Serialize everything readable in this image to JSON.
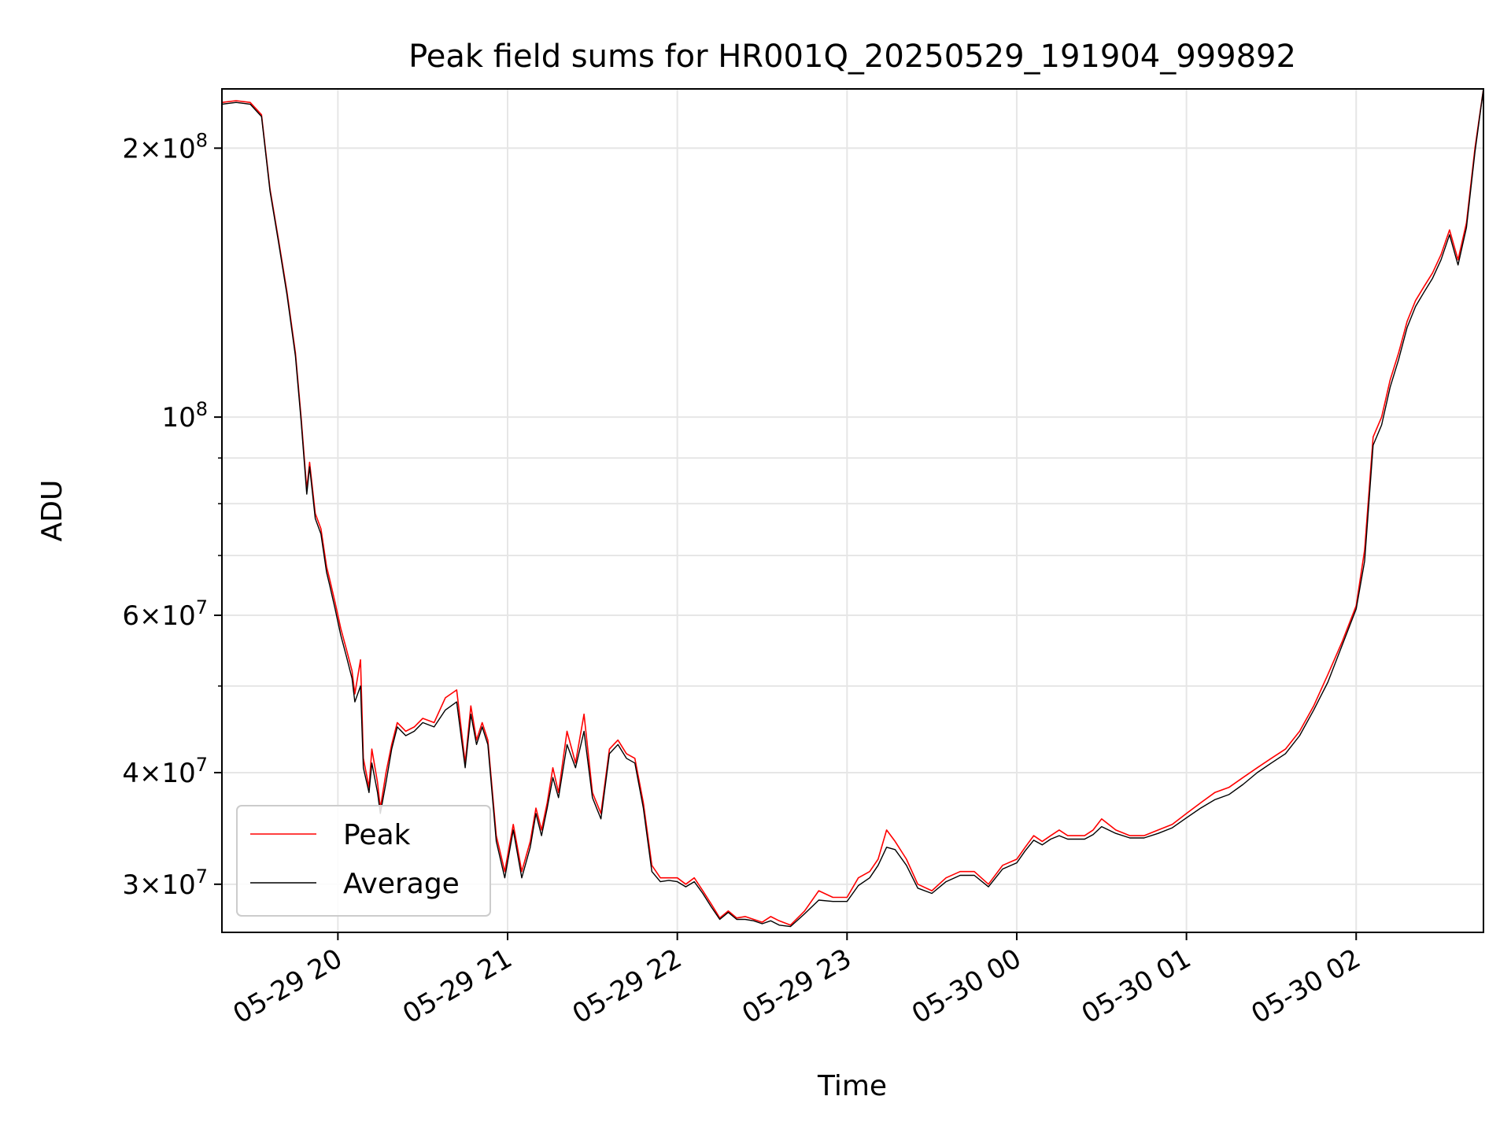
{
  "chart_data": {
    "type": "line",
    "title": "Peak field sums for HR001Q_20250529_191904_999892",
    "xlabel": "Time",
    "ylabel": "ADU",
    "y_scale": "log",
    "ylim": [
      26500000,
      233000000
    ],
    "xlim": [
      "2025-05-29 19:19",
      "2025-05-30 02:45"
    ],
    "grid": true,
    "legend_position": "lower-left",
    "x_ticks": [
      {
        "label": "05-29 20",
        "time": "2025-05-29 20:00"
      },
      {
        "label": "05-29 21",
        "time": "2025-05-29 21:00"
      },
      {
        "label": "05-29 22",
        "time": "2025-05-29 22:00"
      },
      {
        "label": "05-29 23",
        "time": "2025-05-29 23:00"
      },
      {
        "label": "05-30 00",
        "time": "2025-05-30 00:00"
      },
      {
        "label": "05-30 01",
        "time": "2025-05-30 01:00"
      },
      {
        "label": "05-30 02",
        "time": "2025-05-30 02:00"
      }
    ],
    "y_major_ticks": [
      {
        "value": 30000000,
        "mantissa": "3",
        "exponent": "7"
      },
      {
        "value": 40000000,
        "mantissa": "4",
        "exponent": "7"
      },
      {
        "value": 60000000,
        "mantissa": "6",
        "exponent": "7"
      },
      {
        "value": 100000000,
        "mantissa": "",
        "exponent": "8"
      },
      {
        "value": 200000000,
        "mantissa": "2",
        "exponent": "8"
      }
    ],
    "y_minor_grid": [
      50000000,
      70000000,
      80000000,
      90000000
    ],
    "series": [
      {
        "name": "Peak",
        "color": "#ff0000",
        "x": [
          "2025-05-29 19:19",
          "2025-05-29 19:24",
          "2025-05-29 19:29",
          "2025-05-29 19:33",
          "2025-05-29 19:36",
          "2025-05-29 19:39",
          "2025-05-29 19:42",
          "2025-05-29 19:45",
          "2025-05-29 19:47",
          "2025-05-29 19:49",
          "2025-05-29 19:50",
          "2025-05-29 19:52",
          "2025-05-29 19:54",
          "2025-05-29 19:56",
          "2025-05-29 19:57",
          "2025-05-29 19:59",
          "2025-05-29 20:01",
          "2025-05-29 20:03",
          "2025-05-29 20:05",
          "2025-05-29 20:06",
          "2025-05-29 20:08",
          "2025-05-29 20:09",
          "2025-05-29 20:11",
          "2025-05-29 20:12",
          "2025-05-29 20:14",
          "2025-05-29 20:15",
          "2025-05-29 20:17",
          "2025-05-29 20:19",
          "2025-05-29 20:21",
          "2025-05-29 20:24",
          "2025-05-29 20:27",
          "2025-05-29 20:30",
          "2025-05-29 20:34",
          "2025-05-29 20:38",
          "2025-05-29 20:42",
          "2025-05-29 20:45",
          "2025-05-29 20:47",
          "2025-05-29 20:49",
          "2025-05-29 20:51",
          "2025-05-29 20:53",
          "2025-05-29 20:56",
          "2025-05-29 20:59",
          "2025-05-29 21:02",
          "2025-05-29 21:05",
          "2025-05-29 21:08",
          "2025-05-29 21:10",
          "2025-05-29 21:12",
          "2025-05-29 21:14",
          "2025-05-29 21:16",
          "2025-05-29 21:18",
          "2025-05-29 21:21",
          "2025-05-29 21:24",
          "2025-05-29 21:27",
          "2025-05-29 21:30",
          "2025-05-29 21:33",
          "2025-05-29 21:36",
          "2025-05-29 21:39",
          "2025-05-29 21:42",
          "2025-05-29 21:45",
          "2025-05-29 21:48",
          "2025-05-29 21:51",
          "2025-05-29 21:54",
          "2025-05-29 21:57",
          "2025-05-29 22:00",
          "2025-05-29 22:03",
          "2025-05-29 22:06",
          "2025-05-29 22:09",
          "2025-05-29 22:12",
          "2025-05-29 22:15",
          "2025-05-29 22:18",
          "2025-05-29 22:21",
          "2025-05-29 22:24",
          "2025-05-29 22:27",
          "2025-05-29 22:30",
          "2025-05-29 22:33",
          "2025-05-29 22:36",
          "2025-05-29 22:40",
          "2025-05-29 22:45",
          "2025-05-29 22:50",
          "2025-05-29 22:55",
          "2025-05-29 23:00",
          "2025-05-29 23:04",
          "2025-05-29 23:08",
          "2025-05-29 23:11",
          "2025-05-29 23:14",
          "2025-05-29 23:17",
          "2025-05-29 23:21",
          "2025-05-29 23:25",
          "2025-05-29 23:30",
          "2025-05-29 23:35",
          "2025-05-29 23:40",
          "2025-05-29 23:45",
          "2025-05-29 23:50",
          "2025-05-29 23:55",
          "2025-05-30 00:00",
          "2025-05-30 00:03",
          "2025-05-30 00:06",
          "2025-05-30 00:09",
          "2025-05-30 00:12",
          "2025-05-30 00:15",
          "2025-05-30 00:18",
          "2025-05-30 00:21",
          "2025-05-30 00:24",
          "2025-05-30 00:27",
          "2025-05-30 00:30",
          "2025-05-30 00:35",
          "2025-05-30 00:40",
          "2025-05-30 00:45",
          "2025-05-30 00:50",
          "2025-05-30 00:55",
          "2025-05-30 01:00",
          "2025-05-30 01:05",
          "2025-05-30 01:10",
          "2025-05-30 01:15",
          "2025-05-30 01:20",
          "2025-05-30 01:25",
          "2025-05-30 01:30",
          "2025-05-30 01:35",
          "2025-05-30 01:40",
          "2025-05-30 01:45",
          "2025-05-30 01:50",
          "2025-05-30 01:55",
          "2025-05-30 02:00",
          "2025-05-30 02:03",
          "2025-05-30 02:06",
          "2025-05-30 02:09",
          "2025-05-30 02:12",
          "2025-05-30 02:15",
          "2025-05-30 02:18",
          "2025-05-30 02:21",
          "2025-05-30 02:24",
          "2025-05-30 02:27",
          "2025-05-30 02:30",
          "2025-05-30 02:33",
          "2025-05-30 02:36",
          "2025-05-30 02:39",
          "2025-05-30 02:42",
          "2025-05-30 02:45"
        ],
        "y": [
          225000000,
          226000000,
          225000000,
          218000000,
          180000000,
          158000000,
          138000000,
          118000000,
          100000000,
          83000000,
          89000000,
          78000000,
          75000000,
          68000000,
          66000000,
          62000000,
          58000000,
          55000000,
          52000000,
          49000000,
          53500000,
          41500000,
          38500000,
          42500000,
          39000000,
          36500000,
          40000000,
          43000000,
          45500000,
          44500000,
          45000000,
          46000000,
          45500000,
          48500000,
          49500000,
          41000000,
          47500000,
          43500000,
          45500000,
          43500000,
          34000000,
          31000000,
          35000000,
          31000000,
          33500000,
          36500000,
          34500000,
          37000000,
          40500000,
          38000000,
          44500000,
          41000000,
          46500000,
          38000000,
          36000000,
          42500000,
          43500000,
          42000000,
          41500000,
          37000000,
          31500000,
          30500000,
          30500000,
          30500000,
          30000000,
          30500000,
          29500000,
          28500000,
          27500000,
          28000000,
          27500000,
          27600000,
          27400000,
          27200000,
          27600000,
          27300000,
          27000000,
          28000000,
          29500000,
          29000000,
          29000000,
          30500000,
          31000000,
          32000000,
          34500000,
          33500000,
          32000000,
          30000000,
          29500000,
          30500000,
          31000000,
          31000000,
          30000000,
          31500000,
          32000000,
          33000000,
          34000000,
          33500000,
          34000000,
          34500000,
          34000000,
          34000000,
          34000000,
          34500000,
          35500000,
          34500000,
          34000000,
          34000000,
          34500000,
          35000000,
          36000000,
          37000000,
          38000000,
          38500000,
          39500000,
          40500000,
          41500000,
          42500000,
          44500000,
          47500000,
          51500000,
          56000000,
          61500000,
          71000000,
          95000000,
          100000000,
          110000000,
          118000000,
          128000000,
          135000000,
          140000000,
          145000000,
          152000000,
          162000000,
          150000000,
          165000000,
          200000000,
          233000000
        ]
      },
      {
        "name": "Average",
        "color": "#000000",
        "x": [
          "2025-05-29 19:19",
          "2025-05-29 19:24",
          "2025-05-29 19:29",
          "2025-05-29 19:33",
          "2025-05-29 19:36",
          "2025-05-29 19:39",
          "2025-05-29 19:42",
          "2025-05-29 19:45",
          "2025-05-29 19:47",
          "2025-05-29 19:49",
          "2025-05-29 19:50",
          "2025-05-29 19:52",
          "2025-05-29 19:54",
          "2025-05-29 19:56",
          "2025-05-29 19:57",
          "2025-05-29 19:59",
          "2025-05-29 20:01",
          "2025-05-29 20:03",
          "2025-05-29 20:05",
          "2025-05-29 20:06",
          "2025-05-29 20:08",
          "2025-05-29 20:09",
          "2025-05-29 20:11",
          "2025-05-29 20:12",
          "2025-05-29 20:14",
          "2025-05-29 20:15",
          "2025-05-29 20:17",
          "2025-05-29 20:19",
          "2025-05-29 20:21",
          "2025-05-29 20:24",
          "2025-05-29 20:27",
          "2025-05-29 20:30",
          "2025-05-29 20:34",
          "2025-05-29 20:38",
          "2025-05-29 20:42",
          "2025-05-29 20:45",
          "2025-05-29 20:47",
          "2025-05-29 20:49",
          "2025-05-29 20:51",
          "2025-05-29 20:53",
          "2025-05-29 20:56",
          "2025-05-29 20:59",
          "2025-05-29 21:02",
          "2025-05-29 21:05",
          "2025-05-29 21:08",
          "2025-05-29 21:10",
          "2025-05-29 21:12",
          "2025-05-29 21:14",
          "2025-05-29 21:16",
          "2025-05-29 21:18",
          "2025-05-29 21:21",
          "2025-05-29 21:24",
          "2025-05-29 21:27",
          "2025-05-29 21:30",
          "2025-05-29 21:33",
          "2025-05-29 21:36",
          "2025-05-29 21:39",
          "2025-05-29 21:42",
          "2025-05-29 21:45",
          "2025-05-29 21:48",
          "2025-05-29 21:51",
          "2025-05-29 21:54",
          "2025-05-29 21:57",
          "2025-05-29 22:00",
          "2025-05-29 22:03",
          "2025-05-29 22:06",
          "2025-05-29 22:09",
          "2025-05-29 22:12",
          "2025-05-29 22:15",
          "2025-05-29 22:18",
          "2025-05-29 22:21",
          "2025-05-29 22:24",
          "2025-05-29 22:27",
          "2025-05-29 22:30",
          "2025-05-29 22:33",
          "2025-05-29 22:36",
          "2025-05-29 22:40",
          "2025-05-29 22:45",
          "2025-05-29 22:50",
          "2025-05-29 22:55",
          "2025-05-29 23:00",
          "2025-05-29 23:04",
          "2025-05-29 23:08",
          "2025-05-29 23:11",
          "2025-05-29 23:14",
          "2025-05-29 23:17",
          "2025-05-29 23:21",
          "2025-05-29 23:25",
          "2025-05-29 23:30",
          "2025-05-29 23:35",
          "2025-05-29 23:40",
          "2025-05-29 23:45",
          "2025-05-29 23:50",
          "2025-05-29 23:55",
          "2025-05-30 00:00",
          "2025-05-30 00:03",
          "2025-05-30 00:06",
          "2025-05-30 00:09",
          "2025-05-30 00:12",
          "2025-05-30 00:15",
          "2025-05-30 00:18",
          "2025-05-30 00:21",
          "2025-05-30 00:24",
          "2025-05-30 00:27",
          "2025-05-30 00:30",
          "2025-05-30 00:35",
          "2025-05-30 00:40",
          "2025-05-30 00:45",
          "2025-05-30 00:50",
          "2025-05-30 00:55",
          "2025-05-30 01:00",
          "2025-05-30 01:05",
          "2025-05-30 01:10",
          "2025-05-30 01:15",
          "2025-05-30 01:20",
          "2025-05-30 01:25",
          "2025-05-30 01:30",
          "2025-05-30 01:35",
          "2025-05-30 01:40",
          "2025-05-30 01:45",
          "2025-05-30 01:50",
          "2025-05-30 01:55",
          "2025-05-30 02:00",
          "2025-05-30 02:03",
          "2025-05-30 02:06",
          "2025-05-30 02:09",
          "2025-05-30 02:12",
          "2025-05-30 02:15",
          "2025-05-30 02:18",
          "2025-05-30 02:21",
          "2025-05-30 02:24",
          "2025-05-30 02:27",
          "2025-05-30 02:30",
          "2025-05-30 02:33",
          "2025-05-30 02:36",
          "2025-05-30 02:39",
          "2025-05-30 02:42",
          "2025-05-30 02:45"
        ],
        "y": [
          224000000,
          225000000,
          224000000,
          217000000,
          179000000,
          157000000,
          137000000,
          117000000,
          99000000,
          82000000,
          88000000,
          77000000,
          74000000,
          67000000,
          65000000,
          61000000,
          57000000,
          54000000,
          51000000,
          48000000,
          50000000,
          40500000,
          38000000,
          41000000,
          38000000,
          36000000,
          39000000,
          42500000,
          45000000,
          44000000,
          44500000,
          45500000,
          45000000,
          47000000,
          48000000,
          40500000,
          46500000,
          43000000,
          45000000,
          43000000,
          33500000,
          30500000,
          34500000,
          30500000,
          33000000,
          36000000,
          34000000,
          36500000,
          39500000,
          37500000,
          43000000,
          40500000,
          44500000,
          37500000,
          35500000,
          42000000,
          43000000,
          41500000,
          41000000,
          36500000,
          31000000,
          30200000,
          30300000,
          30200000,
          29800000,
          30200000,
          29300000,
          28300000,
          27400000,
          27900000,
          27400000,
          27400000,
          27300000,
          27100000,
          27300000,
          27000000,
          26900000,
          27800000,
          28800000,
          28700000,
          28700000,
          29900000,
          30500000,
          31500000,
          33000000,
          32800000,
          31500000,
          29700000,
          29300000,
          30200000,
          30700000,
          30700000,
          29800000,
          31200000,
          31700000,
          32700000,
          33600000,
          33200000,
          33700000,
          34000000,
          33700000,
          33700000,
          33700000,
          34100000,
          34800000,
          34200000,
          33800000,
          33800000,
          34200000,
          34700000,
          35600000,
          36500000,
          37300000,
          37800000,
          38800000,
          40000000,
          41000000,
          42000000,
          44000000,
          47000000,
          50500000,
          55500000,
          61000000,
          69000000,
          93000000,
          98000000,
          108000000,
          116000000,
          126000000,
          133000000,
          138000000,
          143000000,
          150000000,
          160000000,
          148000000,
          163000000,
          198000000,
          233000000
        ]
      }
    ]
  }
}
